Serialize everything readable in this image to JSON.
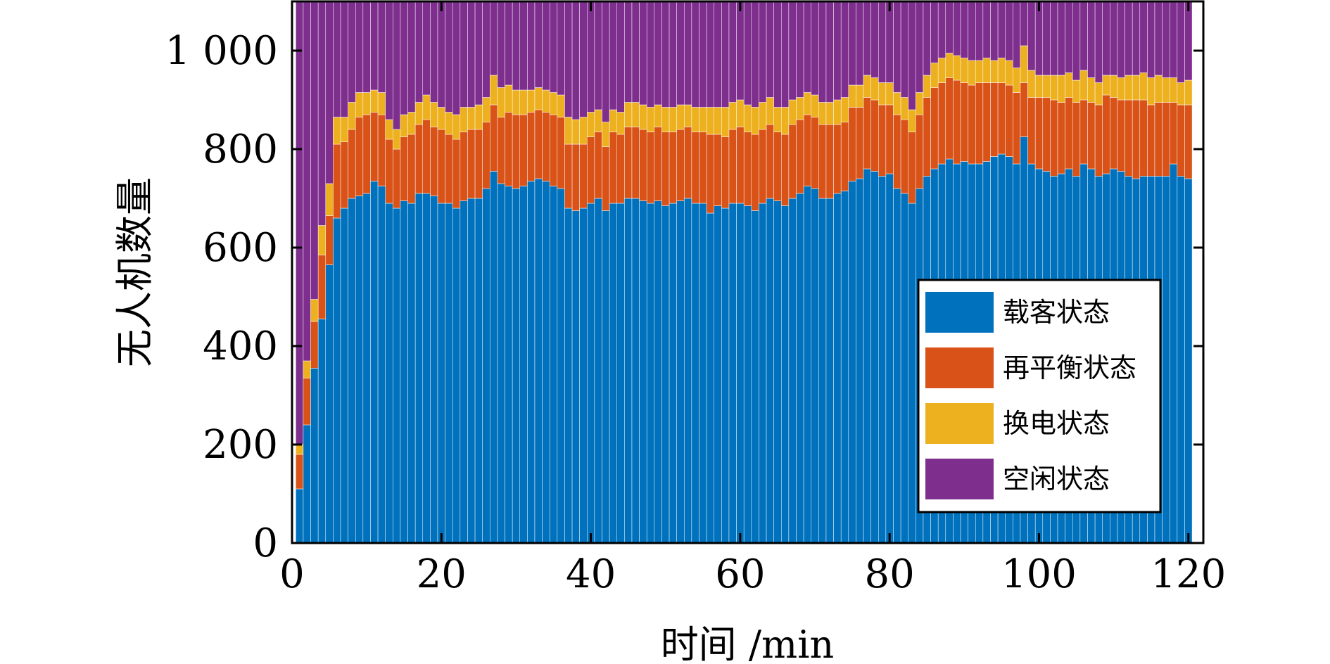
{
  "chart_data": {
    "type": "bar",
    "stacked": true,
    "xlabel": "时间 /min",
    "ylabel": "无人机数量",
    "xlim": [
      0,
      122
    ],
    "ylim": [
      0,
      1100
    ],
    "x_ticks": [
      0,
      20,
      40,
      60,
      80,
      100,
      120
    ],
    "x_tick_labels": [
      "0",
      "20",
      "40",
      "60",
      "80",
      "100",
      "120"
    ],
    "y_ticks": [
      0,
      200,
      400,
      600,
      800,
      1000
    ],
    "y_tick_labels": [
      "0",
      "200",
      "400",
      "600",
      "800",
      "1 000"
    ],
    "total": 1100,
    "legend_position": "bottom-right",
    "x": [
      1,
      2,
      3,
      4,
      5,
      6,
      7,
      8,
      9,
      10,
      11,
      12,
      13,
      14,
      15,
      16,
      17,
      18,
      19,
      20,
      21,
      22,
      23,
      24,
      25,
      26,
      27,
      28,
      29,
      30,
      31,
      32,
      33,
      34,
      35,
      36,
      37,
      38,
      39,
      40,
      41,
      42,
      43,
      44,
      45,
      46,
      47,
      48,
      49,
      50,
      51,
      52,
      53,
      54,
      55,
      56,
      57,
      58,
      59,
      60,
      61,
      62,
      63,
      64,
      65,
      66,
      67,
      68,
      69,
      70,
      71,
      72,
      73,
      74,
      75,
      76,
      77,
      78,
      79,
      80,
      81,
      82,
      83,
      84,
      85,
      86,
      87,
      88,
      89,
      90,
      91,
      92,
      93,
      94,
      95,
      96,
      97,
      98,
      99,
      100,
      101,
      102,
      103,
      104,
      105,
      106,
      107,
      108,
      109,
      110,
      111,
      112,
      113,
      114,
      115,
      116,
      117,
      118,
      119,
      120
    ],
    "series": [
      {
        "name": "载客状态",
        "color": "#0072BD",
        "values": [
          110,
          240,
          355,
          455,
          565,
          660,
          680,
          700,
          705,
          710,
          735,
          725,
          690,
          680,
          695,
          690,
          710,
          710,
          705,
          690,
          690,
          680,
          695,
          700,
          700,
          720,
          755,
          730,
          725,
          720,
          725,
          735,
          740,
          735,
          725,
          720,
          680,
          675,
          680,
          690,
          700,
          675,
          690,
          690,
          700,
          700,
          695,
          690,
          695,
          685,
          690,
          695,
          700,
          690,
          690,
          670,
          685,
          680,
          690,
          690,
          685,
          675,
          690,
          700,
          695,
          685,
          700,
          710,
          725,
          720,
          700,
          700,
          710,
          715,
          735,
          740,
          760,
          755,
          745,
          750,
          720,
          710,
          690,
          720,
          745,
          760,
          770,
          780,
          770,
          775,
          770,
          770,
          775,
          785,
          790,
          785,
          770,
          825,
          770,
          760,
          755,
          745,
          750,
          760,
          745,
          770,
          760,
          745,
          750,
          760,
          755,
          745,
          740,
          745,
          745,
          745,
          745,
          770,
          745,
          740
        ]
      },
      {
        "name": "再平衡状态",
        "color": "#D95319",
        "values": [
          70,
          95,
          95,
          130,
          100,
          150,
          135,
          140,
          160,
          160,
          140,
          145,
          130,
          120,
          130,
          140,
          140,
          150,
          140,
          150,
          140,
          140,
          140,
          140,
          140,
          135,
          135,
          135,
          150,
          150,
          145,
          140,
          140,
          140,
          145,
          145,
          130,
          135,
          130,
          135,
          135,
          130,
          145,
          140,
          145,
          145,
          145,
          145,
          150,
          150,
          145,
          145,
          145,
          145,
          145,
          160,
          145,
          145,
          150,
          155,
          150,
          155,
          150,
          150,
          140,
          145,
          150,
          150,
          145,
          145,
          150,
          150,
          140,
          140,
          150,
          145,
          145,
          145,
          145,
          140,
          150,
          150,
          145,
          150,
          160,
          165,
          165,
          165,
          170,
          160,
          160,
          165,
          160,
          150,
          145,
          145,
          145,
          110,
          135,
          145,
          150,
          155,
          145,
          145,
          150,
          130,
          135,
          145,
          160,
          145,
          145,
          155,
          160,
          155,
          145,
          150,
          150,
          125,
          145,
          150
        ]
      },
      {
        "name": "换电状态",
        "color": "#EDB120",
        "values": [
          20,
          35,
          45,
          60,
          65,
          55,
          50,
          55,
          50,
          45,
          45,
          45,
          40,
          40,
          45,
          45,
          45,
          50,
          50,
          45,
          45,
          50,
          50,
          45,
          50,
          50,
          60,
          60,
          55,
          50,
          50,
          45,
          45,
          45,
          45,
          45,
          55,
          50,
          55,
          50,
          45,
          50,
          45,
          45,
          50,
          50,
          50,
          50,
          45,
          50,
          50,
          50,
          45,
          50,
          50,
          55,
          55,
          60,
          55,
          55,
          55,
          55,
          55,
          55,
          50,
          55,
          50,
          45,
          45,
          45,
          45,
          45,
          50,
          50,
          45,
          45,
          45,
          45,
          45,
          45,
          45,
          45,
          45,
          45,
          45,
          50,
          50,
          50,
          50,
          50,
          50,
          45,
          50,
          45,
          50,
          50,
          50,
          75,
          55,
          45,
          45,
          50,
          55,
          50,
          45,
          60,
          50,
          45,
          40,
          45,
          45,
          50,
          50,
          55,
          55,
          55,
          50,
          50,
          45,
          50
        ]
      }
    ]
  }
}
